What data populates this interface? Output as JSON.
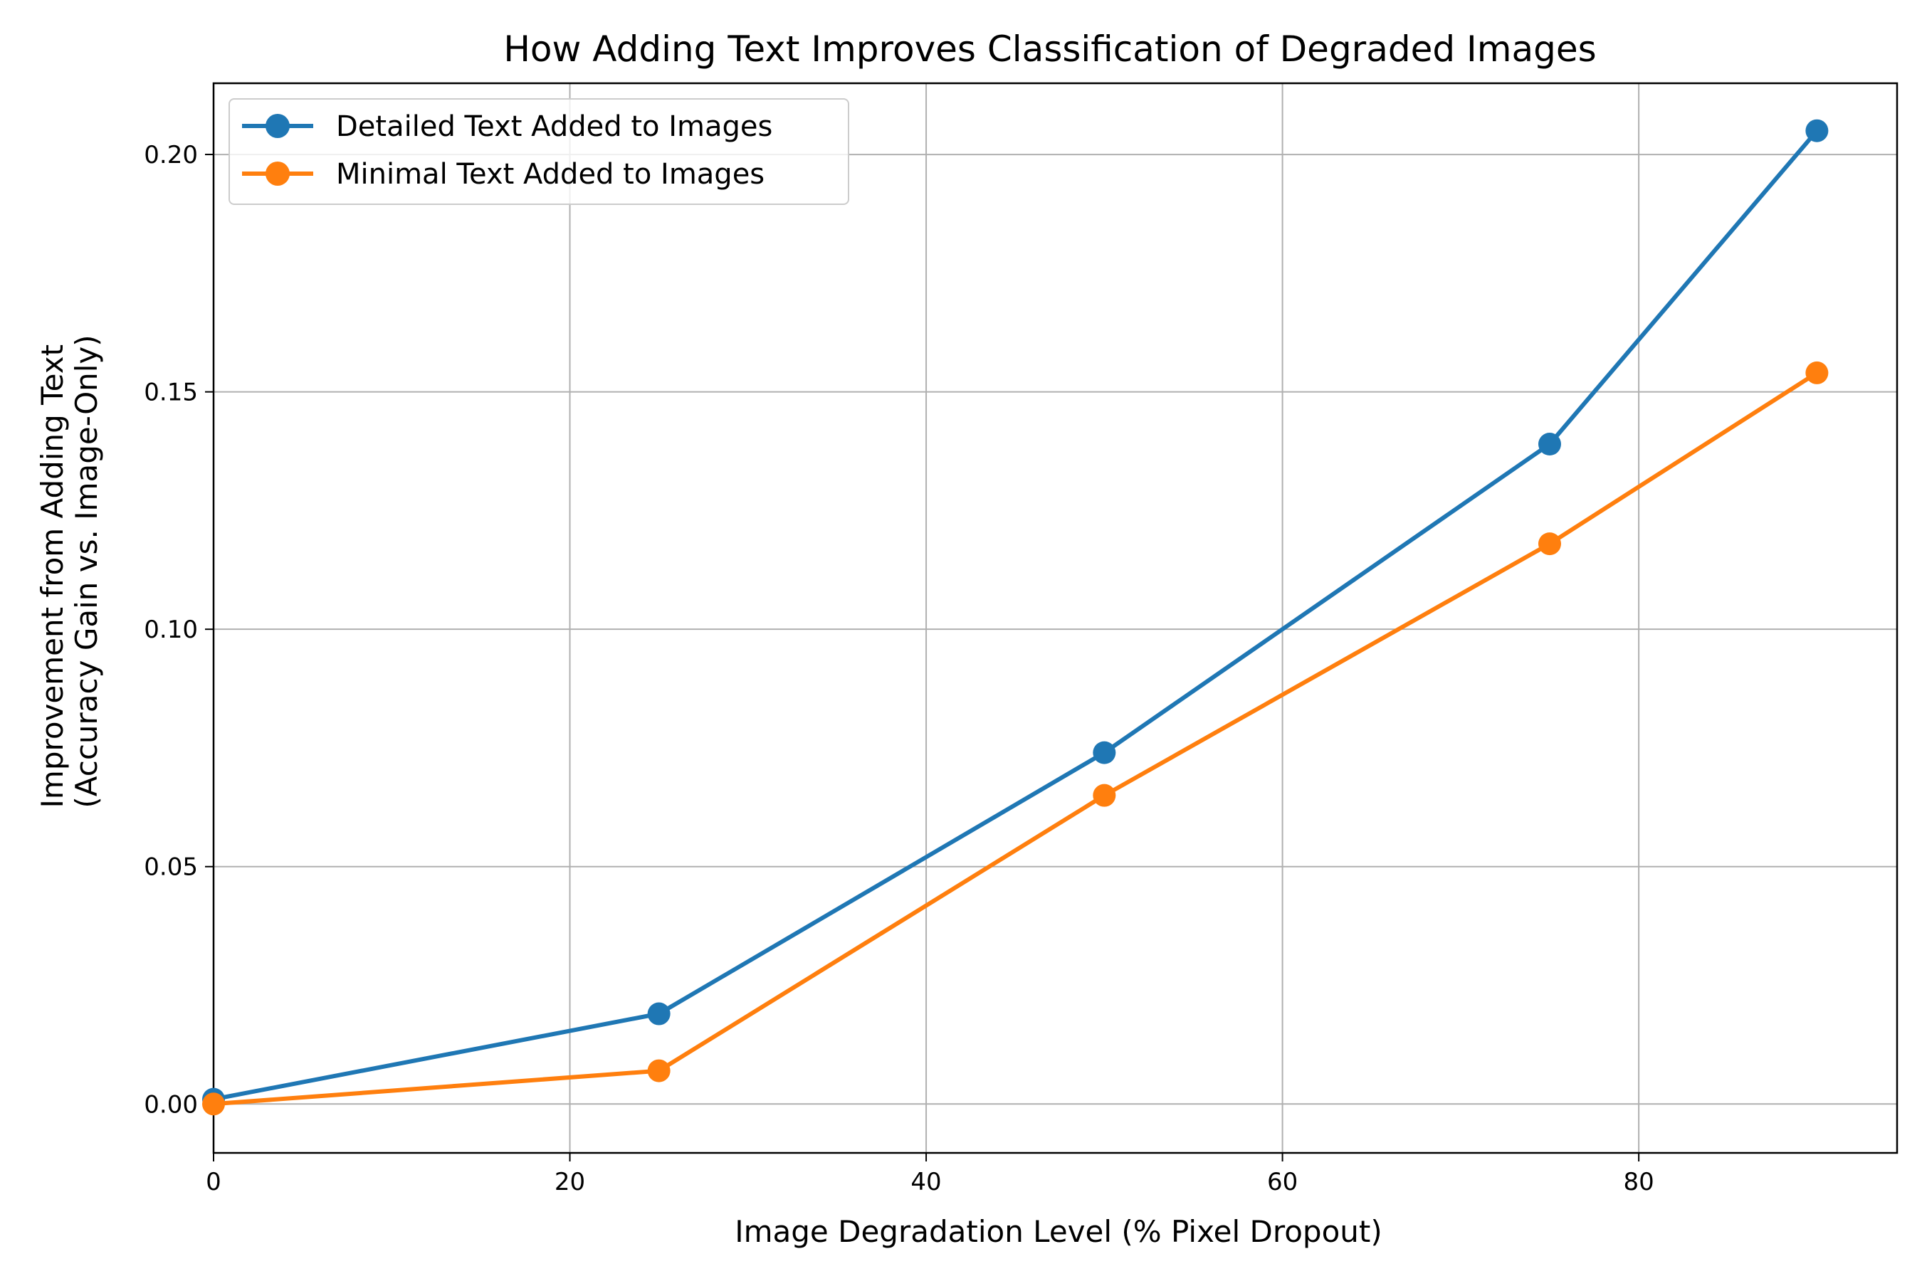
{
  "chart_data": {
    "type": "line",
    "title": "How Adding Text Improves Classification of Degraded Images",
    "xlabel": "Image Degradation Level (% Pixel Dropout)",
    "ylabel": [
      "Improvement from Adding Text",
      "(Accuracy Gain vs. Image-Only)"
    ],
    "x": [
      0,
      25,
      50,
      75,
      90
    ],
    "xlim": [
      0,
      94.5
    ],
    "ylim": [
      -0.0103,
      0.215
    ],
    "xticks": [
      0,
      20,
      40,
      60,
      80
    ],
    "yticks": [
      0.0,
      0.05,
      0.1,
      0.15,
      0.2
    ],
    "xtick_labels": [
      "0",
      "20",
      "40",
      "60",
      "80"
    ],
    "ytick_labels": [
      "0.00",
      "0.05",
      "0.10",
      "0.15",
      "0.20"
    ],
    "grid": true,
    "legend_position": "top-left",
    "series": [
      {
        "name": "Detailed Text Added to Images",
        "color": "#1f77b4",
        "values": [
          0.001,
          0.019,
          0.074,
          0.139,
          0.205
        ]
      },
      {
        "name": "Minimal Text Added to Images",
        "color": "#ff7f0e",
        "values": [
          0.0,
          0.007,
          0.065,
          0.118,
          0.154
        ]
      }
    ]
  }
}
